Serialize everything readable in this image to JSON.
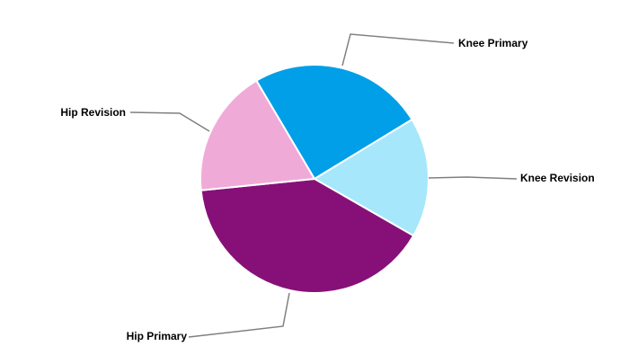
{
  "chart_data": {
    "type": "pie",
    "title": "",
    "categories": [
      "Knee Primary",
      "Knee Revision",
      "Hip Primary",
      "Hip Revision"
    ],
    "values": [
      24.8,
      17.0,
      40.1,
      18.1
    ],
    "colors": [
      "#009FE8",
      "#A6E7FC",
      "#861078",
      "#F0AAD8"
    ],
    "legend": "none",
    "labels": "outside with leader lines"
  }
}
